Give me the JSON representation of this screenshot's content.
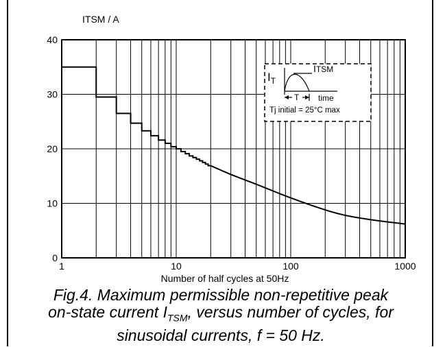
{
  "chart_data": {
    "type": "line",
    "ylabel": "ITSM / A",
    "xlabel": "Number of half cycles at 50Hz",
    "xscale": "log",
    "xlim": [
      1,
      1000
    ],
    "ylim": [
      0,
      40
    ],
    "grid": true,
    "x_ticks": [
      "1",
      "10",
      "100",
      "1000"
    ],
    "y_ticks": [
      "0",
      "10",
      "20",
      "30",
      "40"
    ],
    "series": [
      {
        "step_points": [
          [
            1,
            35
          ],
          [
            2,
            35
          ],
          [
            2,
            29.5
          ],
          [
            3,
            29.5
          ],
          [
            3,
            26.5
          ],
          [
            4,
            26.5
          ],
          [
            4,
            24.7
          ],
          [
            5,
            24.7
          ],
          [
            5,
            23.3
          ],
          [
            6,
            23.3
          ],
          [
            6,
            22.4
          ],
          [
            7,
            22.4
          ],
          [
            7,
            21.6
          ],
          [
            8,
            21.6
          ],
          [
            8,
            21
          ],
          [
            9,
            21
          ],
          [
            9,
            20.4
          ],
          [
            10,
            20.4
          ],
          [
            10,
            20
          ],
          [
            11,
            20
          ],
          [
            11,
            19.5
          ],
          [
            12,
            19.5
          ],
          [
            12,
            19.1
          ],
          [
            13,
            19.1
          ],
          [
            13,
            18.7
          ],
          [
            14,
            18.7
          ],
          [
            14,
            18.4
          ],
          [
            15,
            18.4
          ],
          [
            15,
            18.1
          ],
          [
            16,
            18.1
          ],
          [
            16,
            17.8
          ],
          [
            17,
            17.8
          ],
          [
            17,
            17.5
          ],
          [
            18,
            17.5
          ],
          [
            18,
            17.2
          ],
          [
            19,
            17.2
          ],
          [
            19,
            16.9
          ],
          [
            20,
            16.9
          ]
        ],
        "curve_points": [
          [
            20,
            16.9
          ],
          [
            30,
            15.3
          ],
          [
            50,
            13.5
          ],
          [
            100,
            11
          ],
          [
            200,
            8.8
          ],
          [
            300,
            7.8
          ],
          [
            500,
            7
          ],
          [
            1000,
            6.2
          ]
        ]
      }
    ],
    "inset": {
      "label_it": "I",
      "label_it_sub": "T",
      "label_itsm": "I",
      "label_itsm_sub": "TSM",
      "label_t": "T",
      "label_time": "time",
      "label_tj": "Tj initial = 25°C max"
    }
  },
  "caption": {
    "line1": "Fig.4.   Maximum permissible non-repetitive peak",
    "line2a": "on-state current I",
    "line2_sub": "TSM",
    "line2b": ", versus number of cycles, for",
    "line3": "sinusoidal currents, f = 50 Hz."
  }
}
